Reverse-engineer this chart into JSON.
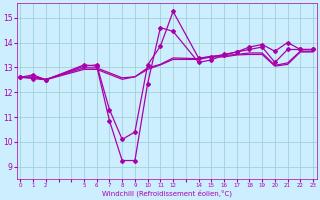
{
  "bg_color": "#cceeff",
  "line_color": "#aa00aa",
  "grid_color": "#99cccc",
  "xlabel": "Windchill (Refroidissement éolien,°C)",
  "tick_color": "#aa00aa",
  "ylim": [
    8.5,
    15.6
  ],
  "yticks": [
    9,
    10,
    11,
    12,
    13,
    14,
    15
  ],
  "xlim": [
    -0.3,
    23.3
  ],
  "x_hours": [
    0,
    1,
    2,
    5,
    6,
    7,
    8,
    9,
    10,
    11,
    12,
    14,
    15,
    16,
    17,
    18,
    19,
    20,
    21,
    22,
    23
  ],
  "line1_y": [
    12.6,
    12.7,
    12.5,
    13.1,
    13.05,
    10.85,
    9.25,
    9.25,
    12.35,
    14.6,
    14.45,
    13.2,
    13.3,
    13.5,
    13.62,
    13.82,
    13.92,
    13.65,
    14.0,
    13.72,
    13.72
  ],
  "line2_y": [
    12.6,
    12.55,
    12.5,
    13.05,
    13.1,
    11.3,
    10.1,
    10.4,
    13.1,
    13.85,
    15.25,
    13.38,
    13.42,
    13.52,
    13.62,
    13.72,
    13.82,
    13.2,
    13.72,
    13.72,
    13.72
  ],
  "line3_y": [
    12.6,
    12.6,
    12.5,
    12.92,
    12.92,
    12.72,
    12.52,
    12.62,
    12.92,
    13.1,
    13.32,
    13.32,
    13.42,
    13.42,
    13.5,
    13.52,
    13.52,
    13.05,
    13.12,
    13.62,
    13.62
  ],
  "line4_y": [
    12.6,
    12.62,
    12.52,
    12.98,
    12.98,
    12.78,
    12.58,
    12.62,
    12.98,
    13.12,
    13.38,
    13.35,
    13.45,
    13.48,
    13.52,
    13.58,
    13.58,
    13.08,
    13.18,
    13.65,
    13.65
  ],
  "xtick_positions": [
    0,
    1,
    2,
    3,
    4,
    5,
    6,
    7,
    8,
    9,
    10,
    11,
    12,
    13,
    14,
    15,
    16,
    17,
    18,
    19,
    20,
    21,
    22,
    23
  ],
  "xtick_labels": [
    "0",
    "1",
    "2",
    "",
    "",
    "5",
    "6",
    "7",
    "8",
    "9",
    "10",
    "11",
    "12",
    "",
    "14",
    "15",
    "16",
    "17",
    "18",
    "19",
    "20",
    "21",
    "22",
    "23"
  ]
}
